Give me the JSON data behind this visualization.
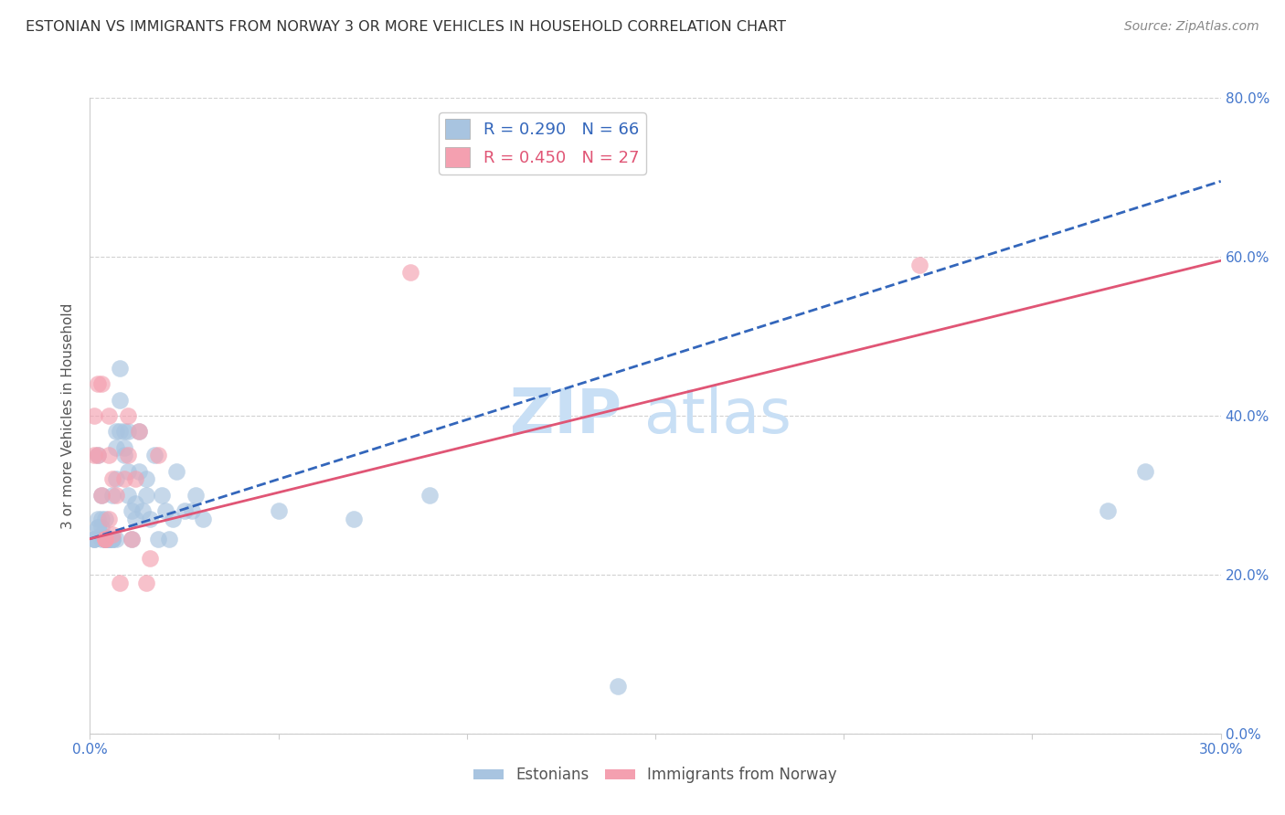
{
  "title": "ESTONIAN VS IMMIGRANTS FROM NORWAY 3 OR MORE VEHICLES IN HOUSEHOLD CORRELATION CHART",
  "source": "Source: ZipAtlas.com",
  "xlabel": "",
  "ylabel": "3 or more Vehicles in Household",
  "legend_label1": "Estonians",
  "legend_label2": "Immigrants from Norway",
  "R1": 0.29,
  "N1": 66,
  "R2": 0.45,
  "N2": 27,
  "color1": "#a8c4e0",
  "color2": "#f4a0b0",
  "trendline1_color": "#3366bb",
  "trendline2_color": "#e05575",
  "watermark_top": "ZIP",
  "watermark_bottom": "atlas",
  "watermark_color": "#c8dff5",
  "xlim": [
    0.0,
    0.3
  ],
  "ylim": [
    0.0,
    0.8
  ],
  "xticks": [
    0.0,
    0.05,
    0.1,
    0.15,
    0.2,
    0.25,
    0.3
  ],
  "yticks": [
    0.0,
    0.2,
    0.4,
    0.6,
    0.8
  ],
  "background_color": "#ffffff",
  "grid_color": "#cccccc",
  "axis_label_color": "#4477cc",
  "trendline1_x0": 0.0,
  "trendline1_y0": 0.245,
  "trendline1_x1": 0.3,
  "trendline1_y1": 0.695,
  "trendline2_x0": 0.0,
  "trendline2_y0": 0.245,
  "trendline2_x1": 0.3,
  "trendline2_y1": 0.595,
  "estonians_x": [
    0.001,
    0.001,
    0.001,
    0.002,
    0.002,
    0.002,
    0.002,
    0.003,
    0.003,
    0.003,
    0.003,
    0.003,
    0.004,
    0.004,
    0.004,
    0.004,
    0.004,
    0.005,
    0.005,
    0.005,
    0.005,
    0.005,
    0.006,
    0.006,
    0.006,
    0.006,
    0.007,
    0.007,
    0.007,
    0.007,
    0.008,
    0.008,
    0.008,
    0.009,
    0.009,
    0.009,
    0.01,
    0.01,
    0.01,
    0.011,
    0.011,
    0.012,
    0.012,
    0.013,
    0.013,
    0.014,
    0.015,
    0.015,
    0.016,
    0.017,
    0.018,
    0.019,
    0.02,
    0.021,
    0.022,
    0.023,
    0.025,
    0.027,
    0.028,
    0.03,
    0.05,
    0.07,
    0.09,
    0.14,
    0.27,
    0.28
  ],
  "estonians_y": [
    0.245,
    0.245,
    0.245,
    0.26,
    0.26,
    0.27,
    0.35,
    0.25,
    0.26,
    0.27,
    0.3,
    0.245,
    0.27,
    0.245,
    0.245,
    0.245,
    0.245,
    0.245,
    0.245,
    0.245,
    0.245,
    0.245,
    0.3,
    0.245,
    0.245,
    0.245,
    0.36,
    0.38,
    0.32,
    0.245,
    0.38,
    0.42,
    0.46,
    0.35,
    0.36,
    0.38,
    0.3,
    0.33,
    0.38,
    0.245,
    0.28,
    0.27,
    0.29,
    0.33,
    0.38,
    0.28,
    0.3,
    0.32,
    0.27,
    0.35,
    0.245,
    0.3,
    0.28,
    0.245,
    0.27,
    0.33,
    0.28,
    0.28,
    0.3,
    0.27,
    0.28,
    0.27,
    0.3,
    0.06,
    0.28,
    0.33
  ],
  "norway_x": [
    0.001,
    0.001,
    0.002,
    0.002,
    0.003,
    0.003,
    0.004,
    0.004,
    0.004,
    0.005,
    0.005,
    0.005,
    0.006,
    0.006,
    0.007,
    0.008,
    0.009,
    0.01,
    0.01,
    0.011,
    0.012,
    0.013,
    0.015,
    0.016,
    0.018,
    0.085,
    0.22
  ],
  "norway_y": [
    0.35,
    0.4,
    0.35,
    0.44,
    0.3,
    0.44,
    0.245,
    0.245,
    0.245,
    0.27,
    0.35,
    0.4,
    0.25,
    0.32,
    0.3,
    0.19,
    0.32,
    0.35,
    0.4,
    0.245,
    0.32,
    0.38,
    0.19,
    0.22,
    0.35,
    0.58,
    0.59
  ]
}
